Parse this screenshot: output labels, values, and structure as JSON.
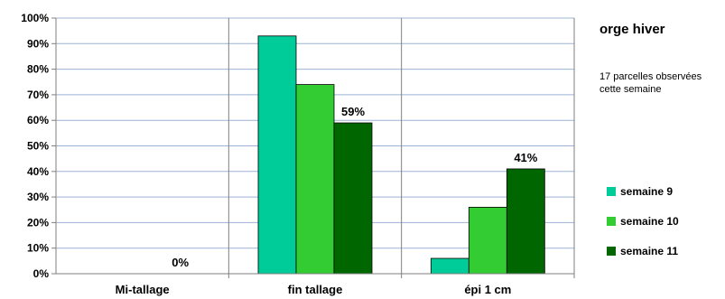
{
  "chart_data": {
    "type": "bar",
    "title": "orge hiver",
    "note": "17 parcelles observées cette semaine",
    "categories": [
      "Mi-tallage",
      "fin tallage",
      "épi 1 cm"
    ],
    "series": [
      {
        "name": "semaine 9",
        "color": "#00cc99",
        "values": [
          0,
          93,
          6
        ]
      },
      {
        "name": "semaine 10",
        "color": "#33cc33",
        "values": [
          0,
          74,
          26
        ]
      },
      {
        "name": "semaine 11",
        "color": "#006600",
        "values": [
          0,
          59,
          41
        ]
      }
    ],
    "yticks": [
      "0%",
      "10%",
      "20%",
      "30%",
      "40%",
      "50%",
      "60%",
      "70%",
      "80%",
      "90%",
      "100%"
    ],
    "ylim": [
      0,
      100
    ],
    "data_labels": [
      {
        "category": 0,
        "series": 2,
        "text": "0%"
      },
      {
        "category": 1,
        "series": 2,
        "text": "59%"
      },
      {
        "category": 2,
        "series": 2,
        "text": "41%"
      }
    ],
    "grid": true,
    "legend_position": "right"
  }
}
